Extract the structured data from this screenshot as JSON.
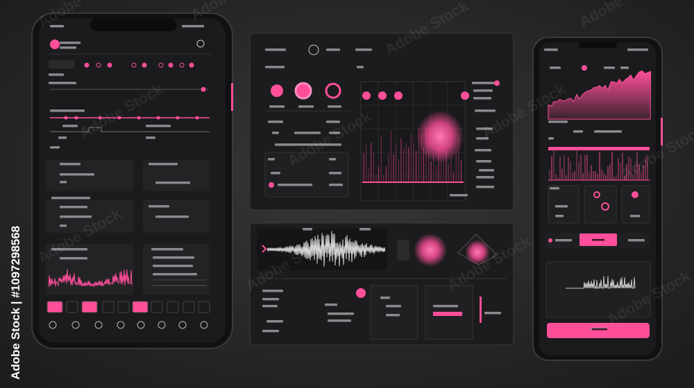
{
  "watermark": {
    "side_label": "Adobe Stock | #1097298568",
    "overlay": "Adobe Stock"
  }
}
